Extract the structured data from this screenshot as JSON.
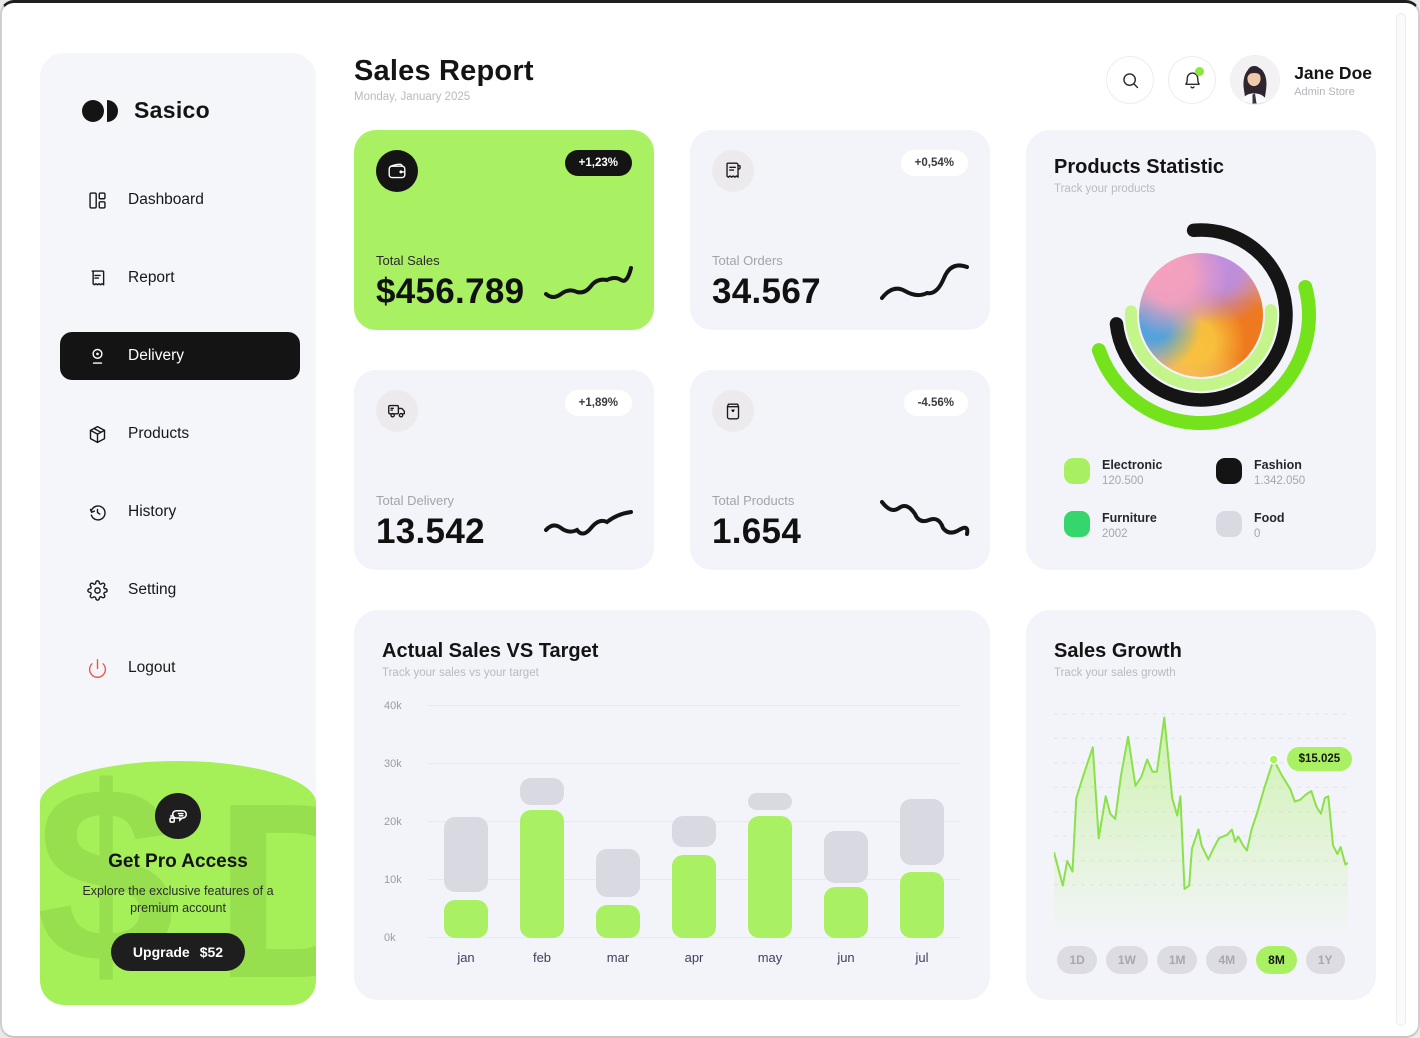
{
  "brand": {
    "name": "Sasico"
  },
  "colors": {
    "accent_green": "#a9f162",
    "bright_green": "#74e31c",
    "pale_green": "#c3f58a",
    "emerald": "#35d66b",
    "black": "#141414",
    "gray_bar": "#d9d9e2",
    "logout_red": "#e8574b"
  },
  "sidebar": {
    "items": [
      {
        "id": "dashboard",
        "label": "Dashboard",
        "icon": "dashboard",
        "active": false
      },
      {
        "id": "report",
        "label": "Report",
        "icon": "report",
        "active": false
      },
      {
        "id": "delivery",
        "label": "Delivery",
        "icon": "delivery",
        "active": true
      },
      {
        "id": "products",
        "label": "Products",
        "icon": "products",
        "active": false
      },
      {
        "id": "history",
        "label": "History",
        "icon": "history",
        "active": false
      },
      {
        "id": "setting",
        "label": "Setting",
        "icon": "setting",
        "active": false
      },
      {
        "id": "logout",
        "label": "Logout",
        "icon": "logout",
        "active": false,
        "danger": true
      }
    ],
    "promo": {
      "watermark": "$D",
      "title": "Get Pro Access",
      "description": "Explore the exclusive features of a premium account",
      "button_label": "Upgrade",
      "button_price": "$52"
    }
  },
  "header": {
    "title": "Sales Report",
    "date": "Monday, January 2025",
    "user": {
      "name": "Jane Doe",
      "role": "Admin Store"
    }
  },
  "stat_cards": [
    {
      "id": "total-sales",
      "label": "Total Sales",
      "value": "$456.789",
      "badge": "+1,23%",
      "icon": "wallet",
      "variant": "green",
      "trend": "up"
    },
    {
      "id": "total-orders",
      "label": "Total Orders",
      "value": "34.567",
      "badge": "+0,54%",
      "icon": "receipt",
      "variant": "light",
      "trend": "up"
    },
    {
      "id": "total-delivery",
      "label": "Total Delivery",
      "value": "13.542",
      "badge": "+1,89%",
      "icon": "truck",
      "variant": "light",
      "trend": "up"
    },
    {
      "id": "total-products",
      "label": "Total Products",
      "value": "1.654",
      "badge": "-4.56%",
      "icon": "bag",
      "variant": "light",
      "trend": "down"
    }
  ],
  "products_statistic": {
    "title": "Products Statistic",
    "subtitle": "Track your products",
    "legend": [
      {
        "label": "Electronic",
        "value": "120.500",
        "color": "#a8ef62"
      },
      {
        "label": "Fashion",
        "value": "1.342.050",
        "color": "#141414"
      },
      {
        "label": "Furniture",
        "value": "2002",
        "color": "#35d66b"
      },
      {
        "label": "Food",
        "value": "0",
        "color": "#d9d9e2"
      }
    ],
    "arcs": [
      {
        "name": "pale-green-arc",
        "r": 70,
        "width": 12,
        "color": "#c3f58a",
        "start": -4,
        "end": 183
      },
      {
        "name": "bright-green-arc",
        "r": 108,
        "width": 14,
        "color": "#74e31c",
        "start": -15,
        "end": 161
      },
      {
        "name": "black-arc",
        "r": 85,
        "width": 13.5,
        "color": "#151515",
        "start": -95,
        "end": 174
      }
    ]
  },
  "sales_growth": {
    "title": "Sales Growth",
    "subtitle": "Track your sales growth",
    "ranges": [
      "1D",
      "1W",
      "1M",
      "4M",
      "8M",
      "1Y"
    ],
    "active_range": "8M"
  },
  "chart_data": [
    {
      "type": "bar",
      "title": "Actual Sales VS Target",
      "subtitle": "Track your sales vs your target",
      "categories": [
        "jan",
        "feb",
        "mar",
        "apr",
        "may",
        "jun",
        "jul"
      ],
      "series": [
        {
          "name": "actual",
          "color": "#a9f162",
          "values": [
            6.5,
            22,
            5.7,
            14.3,
            21,
            8.8,
            11.3
          ]
        },
        {
          "name": "target",
          "color": "#d9d9e2",
          "ranges": [
            [
              8,
              20.8
            ],
            [
              23,
              27.6
            ],
            [
              7,
              15.3
            ],
            [
              15.7,
              21
            ],
            [
              22.1,
              25
            ],
            [
              9.5,
              18.4
            ],
            [
              12.6,
              23.9
            ]
          ]
        }
      ],
      "unit": "k",
      "yticks": [
        "0k",
        "10k",
        "20k",
        "30k",
        "40k"
      ],
      "ylim": [
        0,
        40
      ],
      "grid": true,
      "legend_position": "none"
    },
    {
      "type": "area",
      "title": "Sales Growth",
      "subtitle": "Track your sales growth",
      "line_color": "#8be14b",
      "fill_color": "#a9f162",
      "grid": "dashed",
      "points": [
        [
          0,
          79
        ],
        [
          3,
          98
        ],
        [
          4.5,
          84
        ],
        [
          6.3,
          90
        ],
        [
          7.6,
          48
        ],
        [
          10,
          35
        ],
        [
          13.2,
          19
        ],
        [
          15.2,
          71
        ],
        [
          17.6,
          47
        ],
        [
          19.1,
          57
        ],
        [
          20.8,
          60
        ],
        [
          22.8,
          35
        ],
        [
          25.2,
          13
        ],
        [
          27.7,
          41
        ],
        [
          29.7,
          36
        ],
        [
          31.7,
          26
        ],
        [
          33.5,
          33
        ],
        [
          35,
          33
        ],
        [
          37.5,
          2
        ],
        [
          40.2,
          48
        ],
        [
          41.9,
          58
        ],
        [
          43,
          47
        ],
        [
          44.4,
          100
        ],
        [
          46,
          98
        ],
        [
          46.9,
          77
        ],
        [
          49.1,
          66
        ],
        [
          50.2,
          75
        ],
        [
          52.5,
          83
        ],
        [
          54.5,
          76
        ],
        [
          56.1,
          71
        ],
        [
          58.9,
          69
        ],
        [
          60.5,
          66
        ],
        [
          61.6,
          73
        ],
        [
          62.7,
          70
        ],
        [
          64.3,
          75
        ],
        [
          65.6,
          78
        ],
        [
          67.2,
          66
        ],
        [
          69.2,
          56
        ],
        [
          71.4,
          43
        ],
        [
          74.7,
          26
        ],
        [
          77.5,
          35
        ],
        [
          80.4,
          43
        ],
        [
          81.9,
          50
        ],
        [
          83.7,
          49
        ],
        [
          85.7,
          46
        ],
        [
          87.5,
          44
        ],
        [
          89.3,
          53
        ],
        [
          90.8,
          57
        ],
        [
          92.1,
          48
        ],
        [
          93.3,
          47
        ],
        [
          94.9,
          75
        ],
        [
          96.4,
          80
        ],
        [
          97.5,
          76
        ],
        [
          99.1,
          86
        ],
        [
          100,
          85
        ]
      ],
      "tooltip": {
        "x": 74.7,
        "y": 26,
        "label": "$15.025"
      }
    }
  ]
}
